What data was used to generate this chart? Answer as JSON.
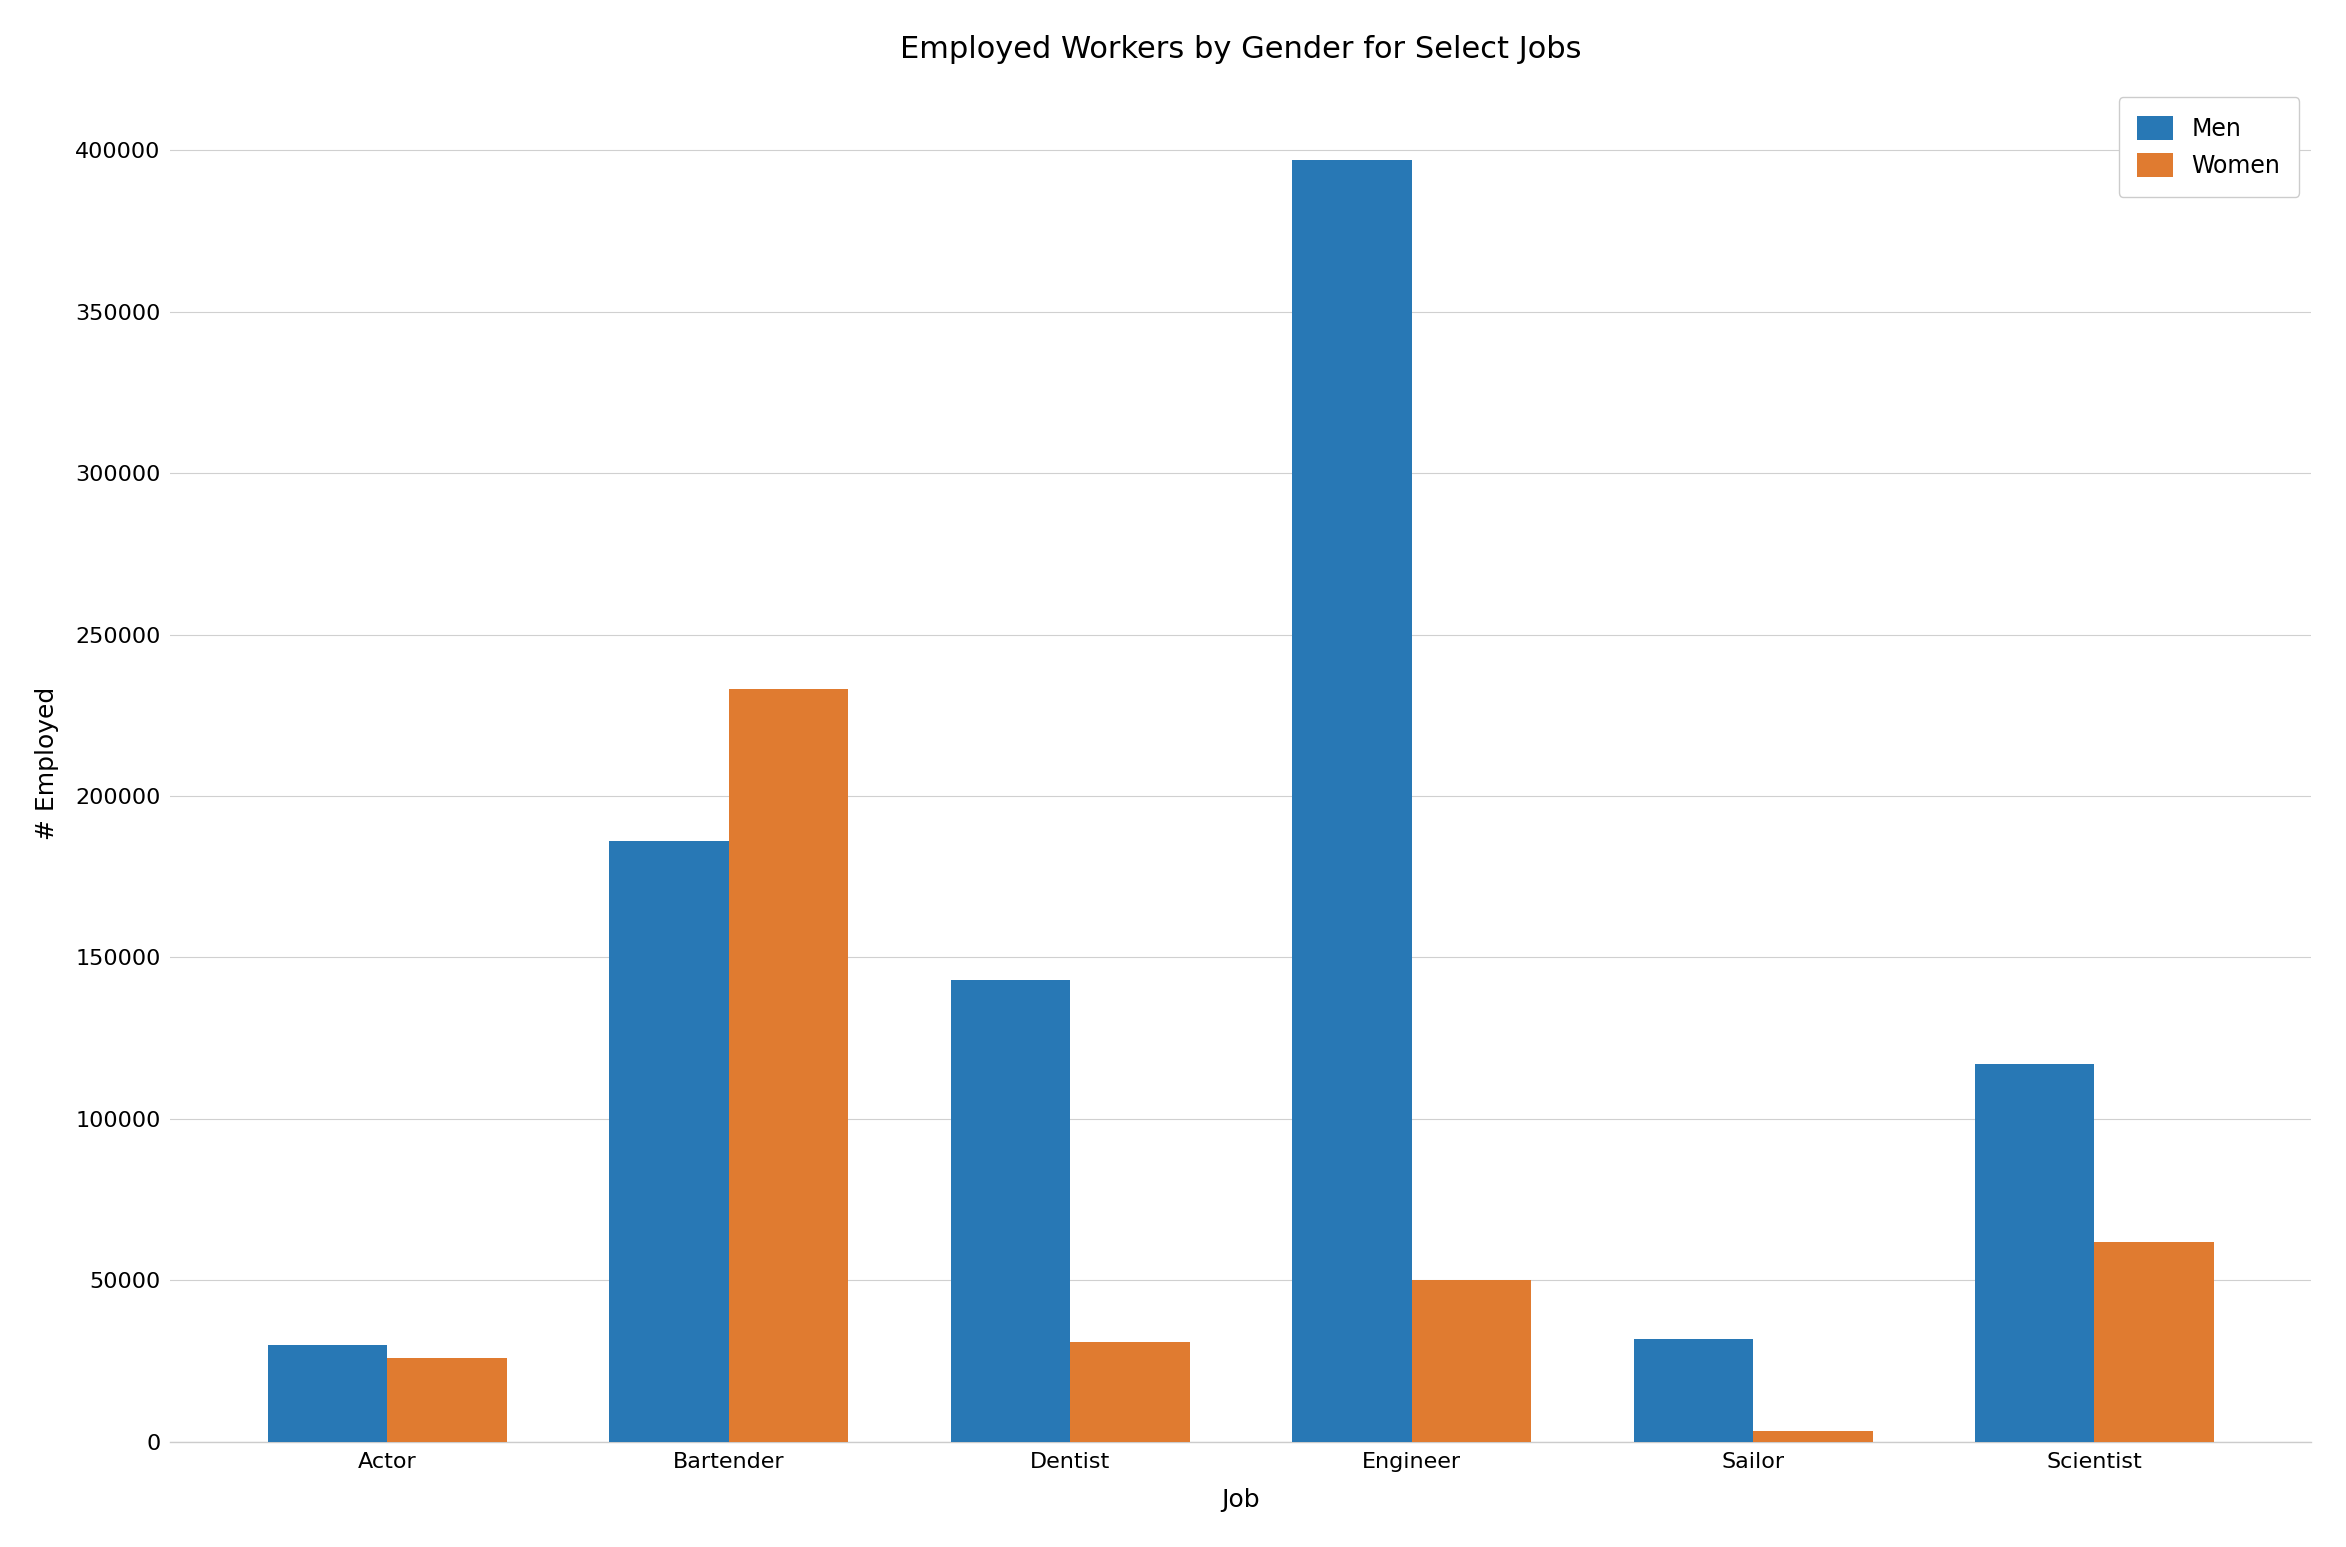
{
  "title": "Employed Workers by Gender for Select Jobs",
  "xlabel": "Job",
  "ylabel": "# Employed",
  "categories": [
    "Actor",
    "Bartender",
    "Dentist",
    "Engineer",
    "Sailor",
    "Scientist"
  ],
  "men_values": [
    30000,
    186000,
    143000,
    397000,
    32000,
    117000
  ],
  "women_values": [
    26000,
    233000,
    31000,
    50000,
    3500,
    62000
  ],
  "men_color": "#2878b5",
  "women_color": "#e07b30",
  "legend_labels": [
    "Men",
    "Women"
  ],
  "ylim": [
    0,
    420000
  ],
  "title_fontsize": 22,
  "label_fontsize": 18,
  "tick_fontsize": 16,
  "legend_fontsize": 17,
  "bar_width": 0.35,
  "background_color": "#ffffff",
  "grid_color": "#d0d0d0"
}
